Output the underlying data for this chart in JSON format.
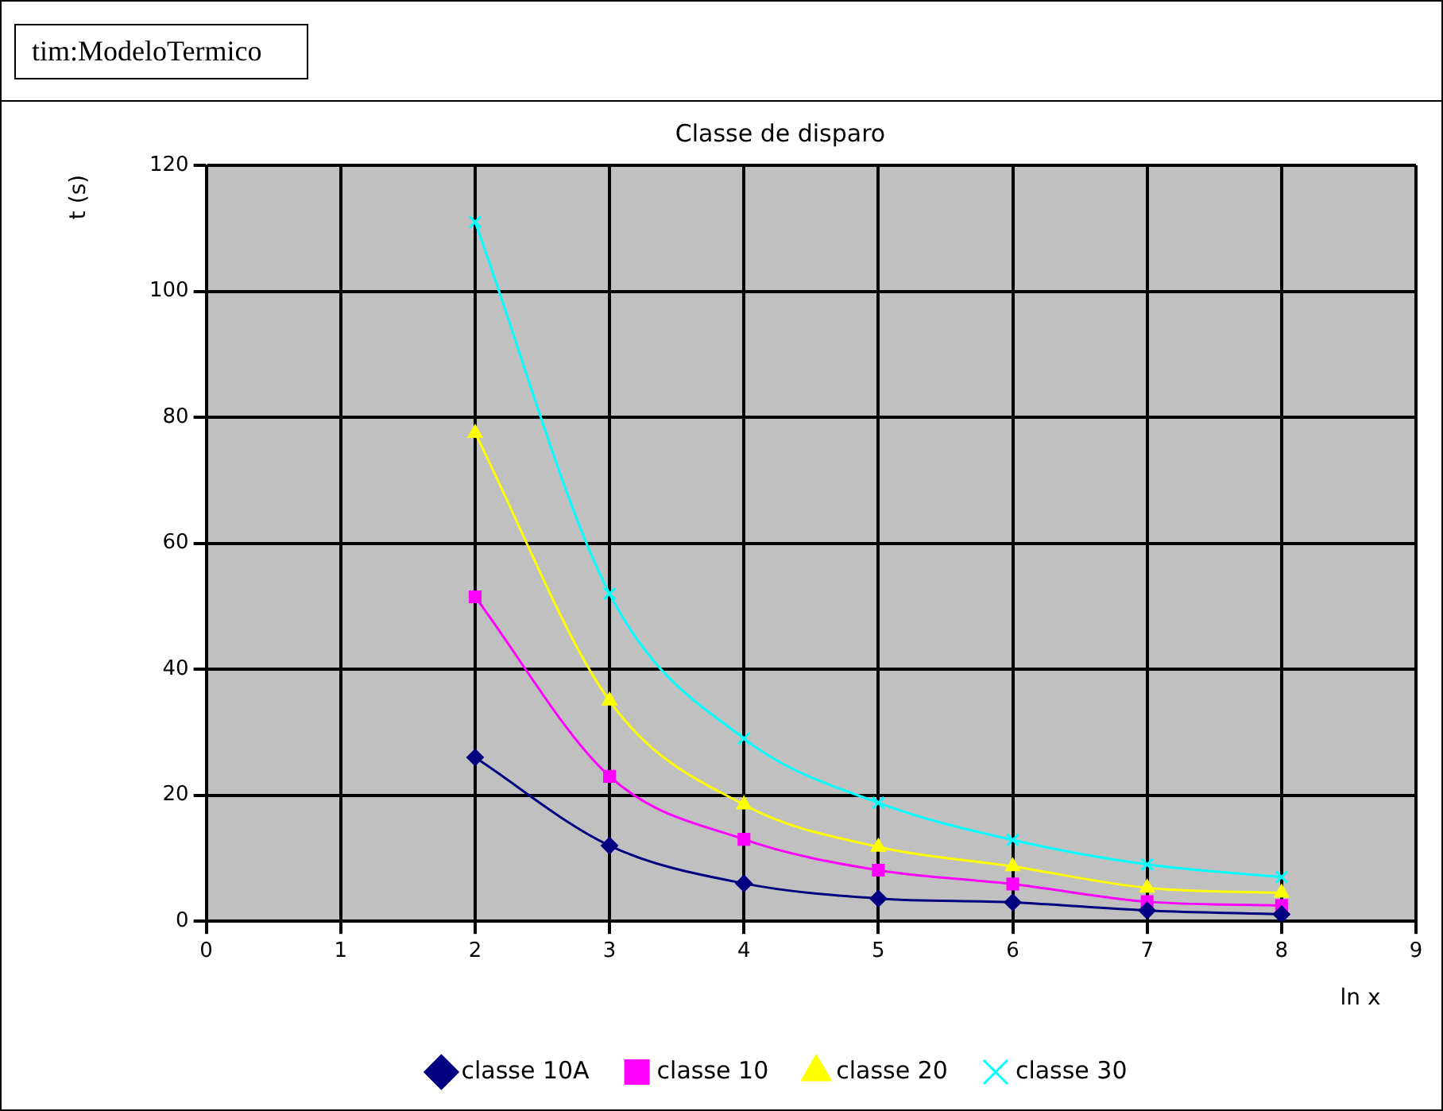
{
  "chart_data": {
    "type": "line",
    "title": "Classe de disparo",
    "xlabel": "ln x",
    "ylabel": "t (s)",
    "annotations": [
      "tim:ModeloTermico"
    ],
    "x": [
      2,
      3,
      4,
      5,
      6,
      7,
      8
    ],
    "series": [
      {
        "name": "classe 10A",
        "color": "#000080",
        "marker": "diamond",
        "values": [
          26,
          12,
          6,
          3.6,
          3,
          1.7,
          1.1
        ]
      },
      {
        "name": "classe 10",
        "color": "#ff00ff",
        "marker": "square",
        "values": [
          51.5,
          23,
          13,
          8.1,
          5.9,
          3.1,
          2.5
        ]
      },
      {
        "name": "classe 20",
        "color": "#ffff00",
        "marker": "triangle",
        "values": [
          77.5,
          35,
          18.5,
          11.8,
          8.7,
          5.3,
          4.5
        ]
      },
      {
        "name": "classe 30",
        "color": "#00ffff",
        "marker": "cross",
        "values": [
          111,
          52,
          29,
          18.8,
          12.9,
          9,
          7
        ]
      }
    ],
    "xlim": [
      0,
      9
    ],
    "xticks": [
      0,
      1,
      2,
      3,
      4,
      5,
      6,
      7,
      8,
      9
    ],
    "ylim": [
      0,
      120
    ],
    "yticks": [
      0,
      20,
      40,
      60,
      80,
      100,
      120
    ],
    "grid": true,
    "legend": "bottom",
    "line_style": "solid"
  }
}
